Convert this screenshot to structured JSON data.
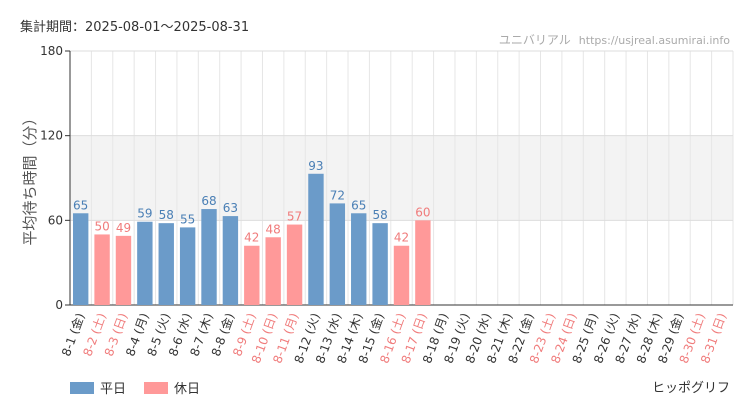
{
  "period": "集計期間：2025-08-01～2025-08-31",
  "watermark": {
    "label": "ユニバリアル",
    "site": "https://usjreal.asumirai.info"
  },
  "brand": "ヒッポグリフ",
  "legend": [
    {
      "label": "平日",
      "color": "#6b9bc9"
    },
    {
      "label": "休日",
      "color": "#ff9999"
    }
  ],
  "chart_data": {
    "type": "bar",
    "ylabel": "平均待ち時間（分）",
    "xlabel": "",
    "ylim": [
      0,
      180
    ],
    "yticks": [
      0,
      60,
      120,
      180
    ],
    "grid": true,
    "band": [
      60,
      120
    ],
    "legend_position": "bottom-left",
    "colors": {
      "weekday": "#6b9bc9",
      "holiday": "#ff9999"
    },
    "categories": [
      "8-1 (金)",
      "8-2 (土)",
      "8-3 (日)",
      "8-4 (月)",
      "8-5 (火)",
      "8-6 (水)",
      "8-7 (木)",
      "8-8 (金)",
      "8-9 (土)",
      "8-10 (日)",
      "8-11 (月)",
      "8-12 (火)",
      "8-13 (水)",
      "8-14 (木)",
      "8-15 (金)",
      "8-16 (土)",
      "8-17 (日)",
      "8-18 (月)",
      "8-19 (火)",
      "8-20 (水)",
      "8-21 (木)",
      "8-22 (金)",
      "8-23 (土)",
      "8-24 (日)",
      "8-25 (月)",
      "8-26 (火)",
      "8-27 (水)",
      "8-28 (木)",
      "8-29 (金)",
      "8-30 (土)",
      "8-31 (日)"
    ],
    "day_types": [
      "weekday",
      "holiday",
      "holiday",
      "weekday",
      "weekday",
      "weekday",
      "weekday",
      "weekday",
      "holiday",
      "holiday",
      "holiday",
      "weekday",
      "weekday",
      "weekday",
      "weekday",
      "holiday",
      "holiday",
      "weekday",
      "weekday",
      "weekday",
      "weekday",
      "weekday",
      "holiday",
      "holiday",
      "weekday",
      "weekday",
      "weekday",
      "weekday",
      "weekday",
      "holiday",
      "holiday"
    ],
    "values": [
      65,
      50,
      49,
      59,
      58,
      55,
      68,
      63,
      42,
      48,
      57,
      93,
      72,
      65,
      58,
      42,
      60,
      null,
      null,
      null,
      null,
      null,
      null,
      null,
      null,
      null,
      null,
      null,
      null,
      null,
      null
    ]
  }
}
